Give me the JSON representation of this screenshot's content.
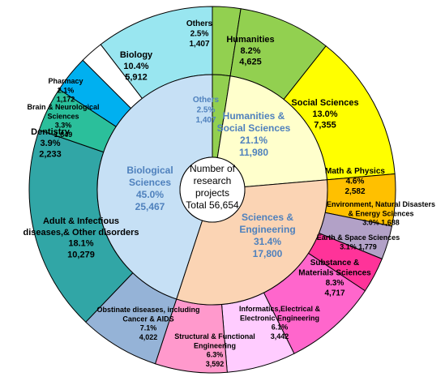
{
  "chart_data": {
    "type": "pie",
    "subtype": "nested-donut",
    "center_label": "Number of\nresearch\nprojects\nTotal  56,654",
    "inner": [
      {
        "label": "Others",
        "percent_text": "2.5%",
        "value": 1407,
        "value_text": "1,407",
        "color": "#92d050",
        "text_color": "#4f81bd"
      },
      {
        "label": "Humanities &\nSocial Sciences",
        "percent_text": "21.1%",
        "value": 11980,
        "value_text": "11,980",
        "color": "#ffffcc",
        "text_color": "#4f81bd"
      },
      {
        "label": "Sciences &\nEngineering",
        "percent_text": "31.4%",
        "value": 17800,
        "value_text": "17,800",
        "color": "#fbd4b4",
        "text_color": "#4f81bd"
      },
      {
        "label": "Biological\nSciences",
        "percent_text": "45.0%",
        "value": 25467,
        "value_text": "25,467",
        "color": "#c6e0f5",
        "text_color": "#4f81bd"
      }
    ],
    "outer": [
      {
        "label": "Others",
        "percent_text": "2.5%",
        "value": 1407,
        "value_text": "1,407",
        "color": "#92d050"
      },
      {
        "label": "Humanities",
        "percent_text": "8.2%",
        "value": 4625,
        "value_text": "4,625",
        "color": "#92d050"
      },
      {
        "label": "Social Sciences",
        "percent_text": "13.0%",
        "value": 7355,
        "value_text": "7,355",
        "color": "#ffff00"
      },
      {
        "label": "Math & Physics",
        "percent_text": "4.6%",
        "value": 2582,
        "value_text": "2,582",
        "color": "#ffc000"
      },
      {
        "label": "Environment, Natural Disasters\n& Energy Sciences",
        "percent_text": "3.0%",
        "value": 1688,
        "value_text": "1,688",
        "color": "#b2a1c7"
      },
      {
        "label": "Earth & Space Sciences",
        "percent_text": "3.1%",
        "value": 1779,
        "value_text": "1,779",
        "color": "#ff3399"
      },
      {
        "label": "Substance &\nMaterials Sciences",
        "percent_text": "8.3%",
        "value": 4717,
        "value_text": "4,717",
        "color": "#ff66cc"
      },
      {
        "label": "Informatics,Electrical &\nElectronic Engineering",
        "percent_text": "6.1%",
        "value": 3442,
        "value_text": "3,442",
        "color": "#ffccff"
      },
      {
        "label": "Structural & Functional\nEngineering",
        "percent_text": "6.3%",
        "value": 3592,
        "value_text": "3,592",
        "color": "#ff99cc"
      },
      {
        "label": "Obstinate diseases, including\nCancer & AIDS",
        "percent_text": "7.1%",
        "value": 4022,
        "value_text": "4,022",
        "color": "#95b3d7"
      },
      {
        "label": "Adult & Infectious\ndiseases,& Other disorders",
        "percent_text": "18.1%",
        "value": 10279,
        "value_text": "10,279",
        "color": "#31a6a6"
      },
      {
        "label": "Dentistry",
        "percent_text": "3.9%",
        "value": 2233,
        "value_text": "2,233",
        "color": "#2bbf9b"
      },
      {
        "label": "Brain & Neurological\nSciences",
        "percent_text": "3.3%",
        "value": 1849,
        "value_text": "1,849",
        "color": "#00b0f0"
      },
      {
        "label": "Pharmacy",
        "percent_text": "2.1%",
        "value": 1172,
        "value_text": "1,172",
        "color": "#ffffff"
      },
      {
        "label": "Biology",
        "percent_text": "10.4%",
        "value": 5912,
        "value_text": "5,912",
        "color": "#99e6f0"
      }
    ]
  }
}
